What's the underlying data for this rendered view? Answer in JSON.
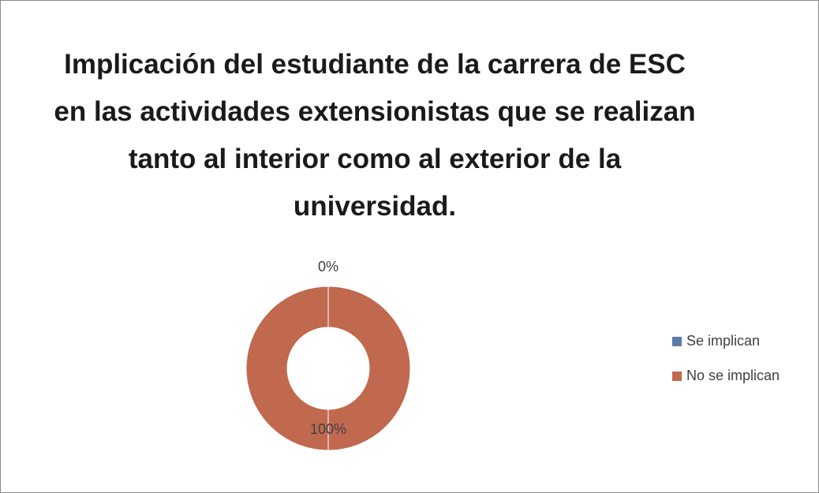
{
  "chart_data": {
    "type": "donut",
    "title": "Implicación del estudiante de la carrera de ESC en las actividades extensionistas que se realizan tanto al interior como al exterior de la universidad.",
    "categories": [
      "Se implican",
      "No se implican"
    ],
    "values": [
      0,
      100
    ],
    "value_labels": [
      "0%",
      "100%"
    ],
    "colors": [
      "#5b7aa8",
      "#c0694f"
    ],
    "legend": "right"
  }
}
